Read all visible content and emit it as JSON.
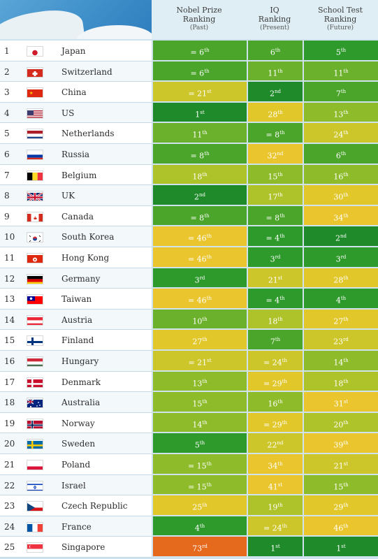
{
  "columns": [
    {
      "title": "Nobel Prize",
      "title2": "Ranking",
      "sub": "(Past)"
    },
    {
      "title": "IQ",
      "title2": "Ranking",
      "sub": "(Present)"
    },
    {
      "title": "School Test",
      "title2": "Ranking",
      "sub": "(Future)"
    }
  ],
  "chart_data": {
    "type": "table",
    "rows": [
      {
        "rank": "1",
        "country": "Japan",
        "flag": "japan",
        "nobel": "= 6",
        "nobel_sfx": "th",
        "iq": "6",
        "iq_sfx": "th",
        "school": "5",
        "school_sfx": "th"
      },
      {
        "rank": "2",
        "country": "Switzerland",
        "flag": "switzerland",
        "nobel": "= 6",
        "nobel_sfx": "th",
        "iq": "11",
        "iq_sfx": "th",
        "school": "11",
        "school_sfx": "th"
      },
      {
        "rank": "3",
        "country": "China",
        "flag": "china",
        "nobel": "= 21",
        "nobel_sfx": "st",
        "iq": "2",
        "iq_sfx": "nd",
        "school": "7",
        "school_sfx": "th"
      },
      {
        "rank": "4",
        "country": "US",
        "flag": "us",
        "nobel": "1",
        "nobel_sfx": "st",
        "iq": "28",
        "iq_sfx": "th",
        "school": "13",
        "school_sfx": "th"
      },
      {
        "rank": "5",
        "country": "Netherlands",
        "flag": "netherlands",
        "nobel": "11",
        "nobel_sfx": "th",
        "iq": "= 8",
        "iq_sfx": "th",
        "school": "24",
        "school_sfx": "th"
      },
      {
        "rank": "6",
        "country": "Russia",
        "flag": "russia",
        "nobel": "= 8",
        "nobel_sfx": "th",
        "iq": "32",
        "iq_sfx": "nd",
        "school": "6",
        "school_sfx": "th"
      },
      {
        "rank": "7",
        "country": "Belgium",
        "flag": "belgium",
        "nobel": "18",
        "nobel_sfx": "th",
        "iq": "15",
        "iq_sfx": "th",
        "school": "16",
        "school_sfx": "th"
      },
      {
        "rank": "8",
        "country": "UK",
        "flag": "uk",
        "nobel": "2",
        "nobel_sfx": "nd",
        "iq": "17",
        "iq_sfx": "th",
        "school": "30",
        "school_sfx": "th"
      },
      {
        "rank": "9",
        "country": "Canada",
        "flag": "canada",
        "nobel": "= 8",
        "nobel_sfx": "th",
        "iq": "= 8",
        "iq_sfx": "th",
        "school": "34",
        "school_sfx": "th"
      },
      {
        "rank": "10",
        "country": "South Korea",
        "flag": "southkorea",
        "nobel": "= 46",
        "nobel_sfx": "th",
        "iq": "= 4",
        "iq_sfx": "th",
        "school": "2",
        "school_sfx": "nd"
      },
      {
        "rank": "11",
        "country": "Hong Kong",
        "flag": "hongkong",
        "nobel": "= 46",
        "nobel_sfx": "th",
        "iq": "3",
        "iq_sfx": "rd",
        "school": "3",
        "school_sfx": "rd"
      },
      {
        "rank": "12",
        "country": "Germany",
        "flag": "germany",
        "nobel": "3",
        "nobel_sfx": "rd",
        "iq": "21",
        "iq_sfx": "st",
        "school": "28",
        "school_sfx": "th"
      },
      {
        "rank": "13",
        "country": "Taiwan",
        "flag": "taiwan",
        "nobel": "= 46",
        "nobel_sfx": "th",
        "iq": "= 4",
        "iq_sfx": "th",
        "school": "4",
        "school_sfx": "th"
      },
      {
        "rank": "14",
        "country": "Austria",
        "flag": "austria",
        "nobel": "10",
        "nobel_sfx": "th",
        "iq": "18",
        "iq_sfx": "th",
        "school": "27",
        "school_sfx": "th"
      },
      {
        "rank": "15",
        "country": "Finland",
        "flag": "finland",
        "nobel": "27",
        "nobel_sfx": "th",
        "iq": "7",
        "iq_sfx": "th",
        "school": "23",
        "school_sfx": "rd"
      },
      {
        "rank": "16",
        "country": "Hungary",
        "flag": "hungary",
        "nobel": "= 21",
        "nobel_sfx": "st",
        "iq": "= 24",
        "iq_sfx": "th",
        "school": "14",
        "school_sfx": "th"
      },
      {
        "rank": "17",
        "country": "Denmark",
        "flag": "denmark",
        "nobel": "13",
        "nobel_sfx": "th",
        "iq": "= 29",
        "iq_sfx": "th",
        "school": "18",
        "school_sfx": "th"
      },
      {
        "rank": "18",
        "country": "Australia",
        "flag": "australia",
        "nobel": "15",
        "nobel_sfx": "th",
        "iq": "16",
        "iq_sfx": "th",
        "school": "31",
        "school_sfx": "st"
      },
      {
        "rank": "19",
        "country": "Norway",
        "flag": "norway",
        "nobel": "14",
        "nobel_sfx": "th",
        "iq": "= 29",
        "iq_sfx": "th",
        "school": "20",
        "school_sfx": "th"
      },
      {
        "rank": "20",
        "country": "Sweden",
        "flag": "sweden",
        "nobel": "5",
        "nobel_sfx": "th",
        "iq": "22",
        "iq_sfx": "nd",
        "school": "39",
        "school_sfx": "th"
      },
      {
        "rank": "21",
        "country": "Poland",
        "flag": "poland",
        "nobel": "= 15",
        "nobel_sfx": "th",
        "iq": "34",
        "iq_sfx": "th",
        "school": "21",
        "school_sfx": "st"
      },
      {
        "rank": "22",
        "country": "Israel",
        "flag": "israel",
        "nobel": "= 15",
        "nobel_sfx": "th",
        "iq": "41",
        "iq_sfx": "st",
        "school": "15",
        "school_sfx": "th"
      },
      {
        "rank": "23",
        "country": "Czech Republic",
        "flag": "czech",
        "nobel": "25",
        "nobel_sfx": "th",
        "iq": "19",
        "iq_sfx": "th",
        "school": "29",
        "school_sfx": "th"
      },
      {
        "rank": "24",
        "country": "France",
        "flag": "france",
        "nobel": "4",
        "nobel_sfx": "th",
        "iq": "= 24",
        "iq_sfx": "th",
        "school": "46",
        "school_sfx": "th"
      },
      {
        "rank": "25",
        "country": "Singapore",
        "flag": "singapore",
        "nobel": "73",
        "nobel_sfx": "rd",
        "iq": "1",
        "iq_sfx": "st",
        "school": "1",
        "school_sfx": "st"
      }
    ],
    "colors": {
      "g1": "#1f8a2a",
      "g2": "#2f9a2c",
      "g3": "#4aa52a",
      "g4": "#6cb12b",
      "g5": "#8dbb2a",
      "g6": "#aec22a",
      "g7": "#cdc62a",
      "g8": "#e2c72b",
      "g9": "#eac52d",
      "or": "#e56a1d"
    }
  }
}
